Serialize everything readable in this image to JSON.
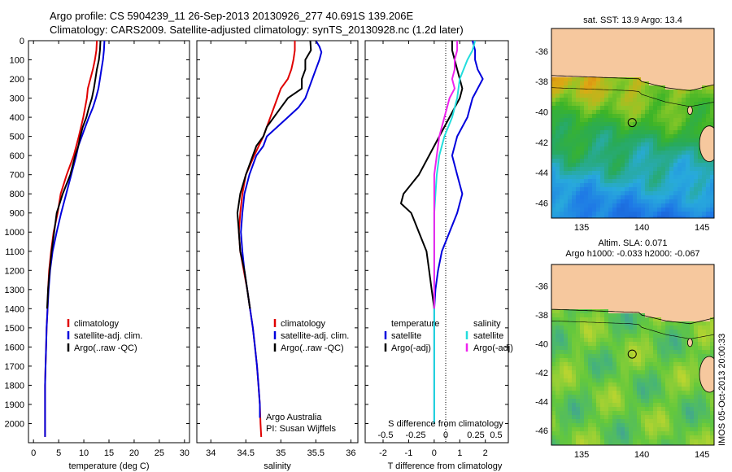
{
  "header": {
    "line1": "Argo profile: CS 5904239_11 26-Sep-2013 20130926_277 40.691S 139.206E",
    "line2": "Climatology: CARS2009. Satellite-adjusted climatology: synTS_20130928.nc (1.2d later)"
  },
  "colors": {
    "climatology": "#e00000",
    "satellite": "#0000dd",
    "argo": "#000000",
    "sat_salinity": "#22dddd",
    "argo_salinity": "#ee22ee"
  },
  "chart_data": [
    {
      "type": "line",
      "xlabel": "temperature (deg C)",
      "ylim": [
        2100,
        0
      ],
      "xlim": [
        -1,
        31
      ],
      "xticks": [
        0,
        5,
        10,
        15,
        20,
        25,
        30
      ],
      "yticks": [
        0,
        100,
        200,
        300,
        400,
        500,
        600,
        700,
        800,
        900,
        1000,
        1100,
        1200,
        1300,
        1400,
        1500,
        1600,
        1700,
        1800,
        1900,
        2000
      ],
      "legend": [
        "climatology",
        "satellite-adj. clim.",
        "Argo(..raw -QC)"
      ],
      "series": [
        {
          "name": "climatology",
          "color": "#e00000",
          "points": [
            [
              12.6,
              0
            ],
            [
              12.5,
              50
            ],
            [
              12.2,
              100
            ],
            [
              11.8,
              150
            ],
            [
              11.3,
              200
            ],
            [
              10.8,
              250
            ],
            [
              10.6,
              300
            ],
            [
              9.9,
              400
            ],
            [
              9.0,
              500
            ],
            [
              8.0,
              600
            ],
            [
              6.6,
              700
            ],
            [
              5.4,
              800
            ],
            [
              4.8,
              900
            ],
            [
              4.0,
              1000
            ],
            [
              3.5,
              1100
            ],
            [
              3.1,
              1200
            ],
            [
              2.9,
              1300
            ],
            [
              2.8,
              1400
            ],
            [
              2.6,
              1500
            ],
            [
              2.5,
              1600
            ],
            [
              2.4,
              1700
            ],
            [
              2.3,
              1800
            ],
            [
              2.3,
              1900
            ],
            [
              2.3,
              2000
            ],
            [
              2.3,
              2070
            ]
          ]
        },
        {
          "name": "satellite-adj. clim.",
          "color": "#0000dd",
          "points": [
            [
              14.1,
              0
            ],
            [
              14.0,
              50
            ],
            [
              13.8,
              100
            ],
            [
              13.5,
              150
            ],
            [
              13.2,
              200
            ],
            [
              12.9,
              250
            ],
            [
              12.4,
              300
            ],
            [
              11.8,
              350
            ],
            [
              11.0,
              400
            ],
            [
              10.3,
              450
            ],
            [
              9.6,
              500
            ],
            [
              8.9,
              550
            ],
            [
              8.5,
              600
            ],
            [
              7.5,
              700
            ],
            [
              6.5,
              800
            ],
            [
              5.5,
              900
            ],
            [
              4.6,
              1000
            ],
            [
              3.8,
              1100
            ],
            [
              3.3,
              1200
            ],
            [
              3.0,
              1300
            ],
            [
              2.8,
              1400
            ],
            [
              2.6,
              1500
            ],
            [
              2.5,
              1600
            ],
            [
              2.4,
              1700
            ],
            [
              2.3,
              1800
            ],
            [
              2.3,
              1900
            ],
            [
              2.3,
              2000
            ],
            [
              2.3,
              2070
            ]
          ]
        },
        {
          "name": "Argo(..raw -QC)",
          "color": "#000000",
          "points": [
            [
              13.3,
              0
            ],
            [
              13.2,
              50
            ],
            [
              13.0,
              100
            ],
            [
              12.6,
              150
            ],
            [
              12.3,
              200
            ],
            [
              12.0,
              250
            ],
            [
              11.6,
              300
            ],
            [
              11.0,
              350
            ],
            [
              10.5,
              400
            ],
            [
              9.8,
              450
            ],
            [
              9.3,
              500
            ],
            [
              8.9,
              550
            ],
            [
              8.3,
              600
            ],
            [
              7.3,
              700
            ],
            [
              5.8,
              800
            ],
            [
              4.6,
              900
            ],
            [
              4.1,
              1000
            ],
            [
              3.6,
              1100
            ],
            [
              3.2,
              1200
            ],
            [
              2.9,
              1300
            ],
            [
              2.7,
              1400
            ]
          ]
        }
      ]
    },
    {
      "type": "line",
      "xlabel": "salinity",
      "ylim": [
        2100,
        0
      ],
      "xlim": [
        33.8,
        36.1
      ],
      "xticks": [
        34,
        34.5,
        35,
        35.5,
        36
      ],
      "legend": [
        "climatology",
        "satellite-adj. clim.",
        "Argo(..raw -QC)"
      ],
      "annotation": [
        "Argo Australia",
        "PI: Susan Wijffels"
      ],
      "series": [
        {
          "name": "climatology",
          "color": "#e00000",
          "points": [
            [
              35.2,
              0
            ],
            [
              35.2,
              50
            ],
            [
              35.18,
              100
            ],
            [
              35.15,
              150
            ],
            [
              35.1,
              200
            ],
            [
              35.0,
              250
            ],
            [
              34.95,
              300
            ],
            [
              34.85,
              400
            ],
            [
              34.75,
              500
            ],
            [
              34.62,
              600
            ],
            [
              34.5,
              700
            ],
            [
              34.45,
              800
            ],
            [
              34.42,
              900
            ],
            [
              34.4,
              1000
            ],
            [
              34.42,
              1100
            ],
            [
              34.47,
              1200
            ],
            [
              34.52,
              1300
            ],
            [
              34.56,
              1400
            ],
            [
              34.6,
              1500
            ],
            [
              34.63,
              1600
            ],
            [
              34.66,
              1700
            ],
            [
              34.68,
              1800
            ],
            [
              34.7,
              1900
            ],
            [
              34.71,
              2000
            ],
            [
              34.72,
              2070
            ]
          ]
        },
        {
          "name": "satellite-adj. clim.",
          "color": "#0000dd",
          "points": [
            [
              35.5,
              0
            ],
            [
              35.55,
              30
            ],
            [
              35.58,
              60
            ],
            [
              35.55,
              100
            ],
            [
              35.5,
              150
            ],
            [
              35.45,
              200
            ],
            [
              35.4,
              250
            ],
            [
              35.35,
              300
            ],
            [
              35.25,
              350
            ],
            [
              35.1,
              400
            ],
            [
              34.95,
              450
            ],
            [
              34.8,
              500
            ],
            [
              34.75,
              550
            ],
            [
              34.65,
              600
            ],
            [
              34.55,
              700
            ],
            [
              34.48,
              800
            ],
            [
              34.45,
              900
            ],
            [
              34.43,
              1000
            ],
            [
              34.45,
              1100
            ],
            [
              34.48,
              1200
            ],
            [
              34.52,
              1300
            ],
            [
              34.56,
              1400
            ],
            [
              34.6,
              1500
            ],
            [
              34.63,
              1600
            ],
            [
              34.66,
              1700
            ],
            [
              34.68,
              1800
            ],
            [
              34.7,
              1900
            ],
            [
              34.7,
              1970
            ]
          ]
        },
        {
          "name": "Argo(..raw -QC)",
          "color": "#000000",
          "points": [
            [
              35.42,
              0
            ],
            [
              35.43,
              50
            ],
            [
              35.35,
              100
            ],
            [
              35.35,
              150
            ],
            [
              35.3,
              200
            ],
            [
              35.3,
              250
            ],
            [
              35.1,
              300
            ],
            [
              35.0,
              350
            ],
            [
              34.9,
              400
            ],
            [
              34.8,
              450
            ],
            [
              34.75,
              500
            ],
            [
              34.65,
              550
            ],
            [
              34.6,
              600
            ],
            [
              34.5,
              700
            ],
            [
              34.42,
              800
            ],
            [
              34.38,
              900
            ],
            [
              34.4,
              1000
            ],
            [
              34.42,
              1100
            ],
            [
              34.48,
              1200
            ],
            [
              34.52,
              1300
            ],
            [
              34.56,
              1400
            ]
          ]
        }
      ]
    },
    {
      "type": "line",
      "xlabel": "T difference from climatology",
      "top_label": "S difference from climatology",
      "ylim": [
        2100,
        0
      ],
      "xlim": [
        -2.7,
        2.9
      ],
      "xticks": [
        -2,
        -1,
        0,
        1,
        2
      ],
      "top_ticks": [
        "-0.5",
        "-0.25",
        "0",
        "0.25",
        "0.5"
      ],
      "legend_temperature": [
        "temperature",
        "satellite",
        "Argo(-adj)"
      ],
      "legend_salinity": [
        "salinity",
        "satellite",
        "Argo(-adj)"
      ],
      "series": [
        {
          "name": "satellite",
          "color": "#0000dd",
          "points": [
            [
              1.5,
              0
            ],
            [
              1.6,
              50
            ],
            [
              1.6,
              100
            ],
            [
              1.7,
              150
            ],
            [
              1.9,
              200
            ],
            [
              1.7,
              250
            ],
            [
              1.5,
              300
            ],
            [
              1.3,
              400
            ],
            [
              0.9,
              500
            ],
            [
              0.7,
              600
            ],
            [
              0.9,
              700
            ],
            [
              1.1,
              800
            ],
            [
              0.9,
              900
            ],
            [
              0.6,
              1000
            ],
            [
              0.3,
              1100
            ],
            [
              0.15,
              1200
            ],
            [
              0.05,
              1300
            ],
            [
              0.0,
              1400
            ],
            [
              0.0,
              1500
            ],
            [
              0.0,
              1800
            ],
            [
              0.0,
              2000
            ]
          ]
        },
        {
          "name": "Argo(-adj)",
          "color": "#000000",
          "points": [
            [
              0.7,
              0
            ],
            [
              0.7,
              50
            ],
            [
              0.8,
              100
            ],
            [
              0.9,
              150
            ],
            [
              1.0,
              200
            ],
            [
              1.1,
              250
            ],
            [
              1.0,
              300
            ],
            [
              0.8,
              350
            ],
            [
              0.6,
              400
            ],
            [
              0.2,
              500
            ],
            [
              -0.2,
              600
            ],
            [
              -0.6,
              700
            ],
            [
              -1.2,
              800
            ],
            [
              -1.3,
              850
            ],
            [
              -0.9,
              900
            ],
            [
              -0.6,
              1000
            ],
            [
              -0.3,
              1100
            ],
            [
              -0.2,
              1200
            ],
            [
              -0.1,
              1300
            ],
            [
              0.0,
              1400
            ]
          ]
        },
        {
          "name": "satellite",
          "color": "#22dddd",
          "points": [
            [
              1.6,
              0
            ],
            [
              1.5,
              50
            ],
            [
              1.3,
              100
            ],
            [
              1.0,
              200
            ],
            [
              0.9,
              300
            ],
            [
              0.7,
              400
            ],
            [
              0.4,
              500
            ],
            [
              0.2,
              600
            ],
            [
              0.1,
              700
            ],
            [
              0.05,
              800
            ],
            [
              0.0,
              900
            ],
            [
              0.0,
              1000
            ],
            [
              0.0,
              1100
            ],
            [
              0.0,
              1300
            ],
            [
              0.0,
              1500
            ],
            [
              0.0,
              1800
            ],
            [
              0.0,
              2000
            ]
          ]
        },
        {
          "name": "Argo(-adj)",
          "color": "#ee22ee",
          "points": [
            [
              0.9,
              0
            ],
            [
              0.9,
              50
            ],
            [
              0.8,
              100
            ],
            [
              0.8,
              150
            ],
            [
              0.7,
              200
            ],
            [
              0.8,
              250
            ],
            [
              0.6,
              300
            ],
            [
              0.4,
              400
            ],
            [
              0.2,
              500
            ],
            [
              0.1,
              600
            ],
            [
              0.0,
              700
            ],
            [
              0.0,
              800
            ],
            [
              0.0,
              900
            ],
            [
              0.0,
              1000
            ],
            [
              0.0,
              1100
            ],
            [
              0.0,
              1300
            ],
            [
              0.0,
              1400
            ]
          ]
        }
      ]
    },
    {
      "type": "heatmap",
      "title": "sat. SST: 13.9 Argo: 13.4",
      "xlim": [
        132.5,
        146
      ],
      "ylim": [
        -47,
        -34.5
      ],
      "xticks": [
        135,
        140,
        145
      ],
      "yticks": [
        -36,
        -38,
        -40,
        -42,
        -44,
        -46
      ],
      "argo_position": [
        139.2,
        -40.7
      ]
    },
    {
      "type": "heatmap",
      "title": "Altim. SLA: 0.071",
      "subtitle": "Argo h1000: -0.033 h2000: -0.067",
      "xlim": [
        132.5,
        146
      ],
      "ylim": [
        -47,
        -34.5
      ],
      "xticks": [
        135,
        140,
        145
      ],
      "yticks": [
        -36,
        -38,
        -40,
        -42,
        -44,
        -46
      ],
      "argo_position": [
        139.2,
        -40.7
      ]
    }
  ],
  "side_caption": "IMOS 05-Oct-2013 20:00:33"
}
